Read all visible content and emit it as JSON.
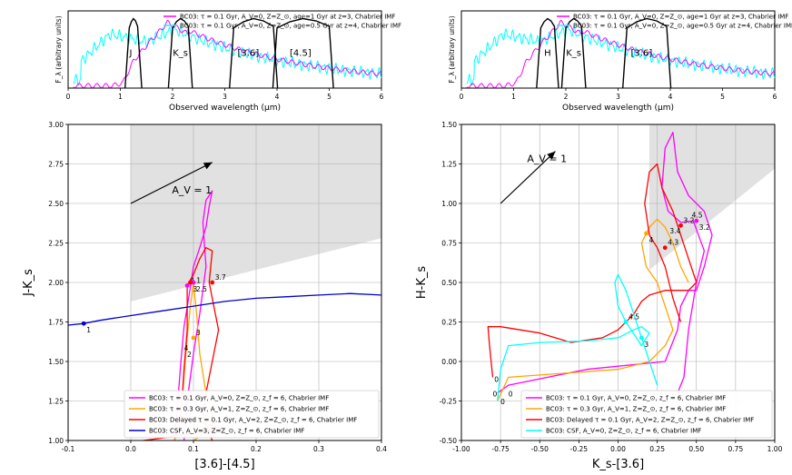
{
  "chart_data": [
    {
      "type": "line",
      "panel": "top-left",
      "xlabel": "Observed wavelength (μm)",
      "ylabel": "F_λ (arbitrary units)",
      "xlim": [
        0,
        6
      ],
      "ylim": [
        0,
        1
      ],
      "xticks": [
        0,
        1,
        2,
        3,
        4,
        5,
        6
      ],
      "legend": [
        {
          "label": "BC03: τ = 0.1 Gyr, A_V=0, Z=Z_⊙, age=1 Gyr at z=3, Chabrier IMF",
          "color": "#ff00ff"
        },
        {
          "label": "BC03: τ = 0.1 Gyr, A_V=0, Z=Z_⊙, age=0.5 Gyr at z=4, Chabrier IMF",
          "color": "#00ffff"
        }
      ],
      "filter_labels": [
        {
          "text": "J",
          "x": 1.2
        },
        {
          "text": "K_s",
          "x": 2.15
        },
        {
          "text": "[3.6]",
          "x": 3.45
        },
        {
          "text": "[4.5]",
          "x": 4.45
        }
      ]
    },
    {
      "type": "line",
      "panel": "top-right",
      "xlabel": "Observed wavelength (μm)",
      "ylabel": "F_λ (arbitrary units)",
      "xlim": [
        0,
        6
      ],
      "ylim": [
        0,
        1
      ],
      "xticks": [
        0,
        1,
        2,
        3,
        4,
        5,
        6
      ],
      "legend": [
        {
          "label": "BC03: τ = 0.1 Gyr, A_V=0, Z=Z_⊙, age=1 Gyr at z=3, Chabrier IMF",
          "color": "#ff00ff"
        },
        {
          "label": "BC03: τ = 0.1 Gyr, A_V=0, Z=Z_⊙, age=0.5 Gyr at z=4, Chabrier IMF",
          "color": "#00ffff"
        }
      ],
      "filter_labels": [
        {
          "text": "H",
          "x": 1.65
        },
        {
          "text": "K_s",
          "x": 2.15
        },
        {
          "text": "[3.6]",
          "x": 3.45
        }
      ]
    },
    {
      "type": "line",
      "panel": "bottom-left",
      "xlabel": "[3.6]-[4.5]",
      "ylabel": "J-K_s",
      "xlim": [
        -0.1,
        0.4
      ],
      "ylim": [
        1.0,
        3.0
      ],
      "xticks": [
        -0.1,
        0.0,
        0.1,
        0.2,
        0.3,
        0.4
      ],
      "yticks": [
        1.0,
        1.25,
        1.5,
        1.75,
        2.0,
        2.25,
        2.5,
        2.75,
        3.0
      ],
      "shaded_region": [
        [
          0.0,
          1.88
        ],
        [
          0.4,
          2.28
        ],
        [
          0.4,
          3.0
        ],
        [
          0.0,
          3.0
        ]
      ],
      "extinction_vector": {
        "label": "A_V = 1",
        "from": [
          0.0,
          2.5
        ],
        "to": [
          0.13,
          2.76
        ]
      },
      "series": [
        {
          "name": "BC03: τ = 0.1 Gyr, A_V=0, Z=Z_⊙, z_f = 6, Chabrier IMF",
          "color": "#ff00ff",
          "points": [
            [
              0.07,
              1.0
            ],
            [
              0.075,
              1.25
            ],
            [
              0.08,
              1.5
            ],
            [
              0.085,
              1.72
            ],
            [
              0.095,
              1.97
            ],
            [
              0.1,
              2.1
            ],
            [
              0.11,
              2.22
            ],
            [
              0.12,
              2.35
            ],
            [
              0.125,
              2.48
            ],
            [
              0.13,
              2.58
            ],
            [
              0.12,
              2.52
            ],
            [
              0.115,
              2.38
            ],
            [
              0.12,
              2.1
            ],
            [
              0.11,
              1.8
            ],
            [
              0.1,
              1.55
            ],
            [
              0.09,
              1.25
            ],
            [
              0.085,
              1.0
            ]
          ]
        },
        {
          "name": "BC03: τ = 0.3 Gyr, A_V=1, Z=Z_⊙, z_f = 6, Chabrier IMF",
          "color": "#ffa500",
          "points": [
            [
              0.07,
              1.0
            ],
            [
              0.08,
              1.15
            ],
            [
              0.085,
              1.4
            ],
            [
              0.09,
              1.65
            ],
            [
              0.095,
              1.85
            ],
            [
              0.1,
              2.0
            ],
            [
              0.105,
              1.8
            ],
            [
              0.11,
              1.55
            ],
            [
              0.12,
              1.3
            ],
            [
              0.13,
              1.15
            ],
            [
              0.12,
              1.05
            ],
            [
              0.1,
              1.0
            ]
          ]
        },
        {
          "name": "BC03: Delayed τ = 0.1 Gyr, A_V=2, Z=Z_⊙, z_f = 6, Chabrier IMF",
          "color": "#ff0000",
          "points": [
            [
              0.02,
              1.0
            ],
            [
              0.06,
              1.02
            ],
            [
              0.1,
              1.05
            ],
            [
              0.15,
              1.07
            ],
            [
              0.08,
              1.15
            ],
            [
              0.085,
              1.45
            ],
            [
              0.09,
              1.7
            ],
            [
              0.09,
              1.98
            ],
            [
              0.1,
              2.05
            ],
            [
              0.11,
              2.15
            ],
            [
              0.12,
              2.22
            ],
            [
              0.13,
              2.2
            ],
            [
              0.125,
              2.0
            ],
            [
              0.13,
              1.9
            ],
            [
              0.14,
              1.7
            ],
            [
              0.13,
              1.5
            ],
            [
              0.12,
              1.3
            ],
            [
              0.115,
              1.15
            ],
            [
              0.13,
              1.0
            ]
          ]
        },
        {
          "name": "BC03: CSF, A_V=3, Z=Z_⊙, z_f = 6, Chabrier IMF",
          "color": "#0000cd",
          "points": [
            [
              -0.1,
              1.73
            ],
            [
              -0.075,
              1.74
            ],
            [
              -0.05,
              1.76
            ],
            [
              0.0,
              1.79
            ],
            [
              0.05,
              1.82
            ],
            [
              0.1,
              1.85
            ],
            [
              0.15,
              1.88
            ],
            [
              0.2,
              1.9
            ],
            [
              0.25,
              1.91
            ],
            [
              0.3,
              1.92
            ],
            [
              0.35,
              1.93
            ],
            [
              0.4,
              1.92
            ]
          ]
        }
      ],
      "markers": [
        {
          "x": 0.09,
          "y": 1.98,
          "color": "#ff00ff",
          "label": "4.1"
        },
        {
          "x": 0.1,
          "y": 2.0,
          "color": "#ff00ff",
          "label": "2.5"
        },
        {
          "x": 0.13,
          "y": 2.0,
          "color": "#ff0000",
          "label": "3.7"
        },
        {
          "x": 0.095,
          "y": 2.0,
          "color": "#ff0000",
          "label": "3"
        },
        {
          "x": 0.1,
          "y": 1.65,
          "color": "#ffa500",
          "label": "3"
        },
        {
          "x": -0.075,
          "y": 1.74,
          "color": "#0000cd",
          "label": "1"
        }
      ],
      "annotations": [
        "4",
        "2"
      ]
    },
    {
      "type": "line",
      "panel": "bottom-right",
      "xlabel": "K_s-[3.6]",
      "ylabel": "H-K_s",
      "xlim": [
        -1.0,
        1.0
      ],
      "ylim": [
        -0.5,
        1.5
      ],
      "xticks": [
        -1.0,
        -0.75,
        -0.5,
        -0.25,
        0.0,
        0.25,
        0.5,
        0.75,
        1.0
      ],
      "yticks": [
        -0.5,
        -0.25,
        0.0,
        0.25,
        0.5,
        0.75,
        1.0,
        1.25,
        1.5
      ],
      "shaded_region": [
        [
          0.2,
          1.5
        ],
        [
          1.0,
          1.5
        ],
        [
          1.0,
          1.22
        ],
        [
          0.2,
          0.58
        ]
      ],
      "extinction_vector": {
        "label": "A_V = 1",
        "from": [
          -0.75,
          1.0
        ],
        "to": [
          -0.4,
          1.33
        ]
      },
      "series": [
        {
          "name": "BC03: τ = 0.1 Gyr, A_V=0, Z=Z_⊙, z_f = 6, Chabrier IMF",
          "color": "#ff00ff",
          "points": [
            [
              -0.77,
              -0.2
            ],
            [
              -0.7,
              -0.15
            ],
            [
              -0.2,
              -0.05
            ],
            [
              0.3,
              0.0
            ],
            [
              0.38,
              0.2
            ],
            [
              0.4,
              0.35
            ],
            [
              0.45,
              0.45
            ],
            [
              0.5,
              0.45
            ],
            [
              0.55,
              0.6
            ],
            [
              0.6,
              0.8
            ],
            [
              0.55,
              0.95
            ],
            [
              0.45,
              1.05
            ],
            [
              0.38,
              1.2
            ],
            [
              0.35,
              1.45
            ],
            [
              0.3,
              1.35
            ],
            [
              0.28,
              1.1
            ],
            [
              0.32,
              0.95
            ],
            [
              0.4,
              0.88
            ],
            [
              0.48,
              0.89
            ],
            [
              0.55,
              0.7
            ],
            [
              0.5,
              0.5
            ],
            [
              0.45,
              0.2
            ],
            [
              0.42,
              -0.1
            ],
            [
              0.38,
              -0.2
            ]
          ]
        },
        {
          "name": "BC03: τ = 0.3 Gyr, A_V=1, Z=Z_⊙, z_f = 6, Chabrier IMF",
          "color": "#ffa500",
          "points": [
            [
              -0.77,
              -0.25
            ],
            [
              -0.7,
              -0.1
            ],
            [
              0.0,
              -0.05
            ],
            [
              0.2,
              0.0
            ],
            [
              0.3,
              0.1
            ],
            [
              0.35,
              0.2
            ],
            [
              0.3,
              0.35
            ],
            [
              0.25,
              0.5
            ],
            [
              0.18,
              0.6
            ],
            [
              0.15,
              0.75
            ],
            [
              0.2,
              0.85
            ],
            [
              0.25,
              0.9
            ],
            [
              0.3,
              0.85
            ],
            [
              0.35,
              0.75
            ],
            [
              0.4,
              0.6
            ],
            [
              0.45,
              0.5
            ]
          ]
        },
        {
          "name": "BC03: Delayed τ = 0.1 Gyr, A_V=2, Z=Z_⊙, z_f = 6, Chabrier IMF",
          "color": "#ff0000",
          "points": [
            [
              -0.8,
              -0.1
            ],
            [
              -0.82,
              0.1
            ],
            [
              -0.83,
              0.22
            ],
            [
              -0.75,
              0.22
            ],
            [
              -0.5,
              0.18
            ],
            [
              -0.3,
              0.12
            ],
            [
              -0.1,
              0.15
            ],
            [
              0.0,
              0.2
            ],
            [
              0.1,
              0.3
            ],
            [
              0.15,
              0.38
            ],
            [
              0.2,
              0.42
            ],
            [
              0.3,
              0.45
            ],
            [
              0.45,
              0.45
            ],
            [
              0.5,
              0.5
            ],
            [
              0.45,
              0.65
            ],
            [
              0.4,
              0.8
            ],
            [
              0.35,
              0.95
            ],
            [
              0.28,
              1.1
            ],
            [
              0.25,
              1.25
            ],
            [
              0.2,
              1.2
            ],
            [
              0.17,
              1.0
            ],
            [
              0.2,
              0.8
            ],
            [
              0.25,
              0.72
            ],
            [
              0.3,
              0.6
            ],
            [
              0.35,
              0.4
            ],
            [
              0.4,
              0.25
            ]
          ]
        },
        {
          "name": "BC03: CSF, A_V=0, Z=Z_⊙, z_f = 6, Chabrier IMF",
          "color": "#00ffff",
          "points": [
            [
              -0.77,
              -0.25
            ],
            [
              -0.75,
              -0.05
            ],
            [
              -0.7,
              0.1
            ],
            [
              -0.5,
              0.12
            ],
            [
              -0.2,
              0.13
            ],
            [
              0.0,
              0.15
            ],
            [
              0.1,
              0.2
            ],
            [
              0.15,
              0.22
            ],
            [
              0.2,
              0.18
            ],
            [
              0.15,
              0.1
            ],
            [
              0.05,
              0.25
            ],
            [
              0.0,
              0.35
            ],
            [
              -0.02,
              0.5
            ],
            [
              0.0,
              0.55
            ],
            [
              0.05,
              0.45
            ],
            [
              0.1,
              0.3
            ],
            [
              0.15,
              0.15
            ],
            [
              0.2,
              0.0
            ],
            [
              0.25,
              -0.15
            ]
          ]
        }
      ],
      "markers": [
        {
          "x": 0.4,
          "y": 0.86,
          "color": "#ff0000",
          "label": "3.2"
        },
        {
          "x": 0.5,
          "y": 0.89,
          "color": "#ff00ff",
          "label": "3.2"
        },
        {
          "x": 0.3,
          "y": 0.72,
          "color": "#ff0000",
          "label": "4.3"
        },
        {
          "x": 0.18,
          "y": 0.81,
          "color": "#ffa500",
          "label": "4"
        },
        {
          "x": 0.05,
          "y": 0.25,
          "color": "#00ffff",
          "label": "4.5"
        },
        {
          "x": 0.15,
          "y": 0.15,
          "color": "#00ffff",
          "label": "3"
        }
      ],
      "annotations": [
        "3.4",
        "4.5",
        "0",
        "0",
        "0",
        "0"
      ]
    }
  ]
}
